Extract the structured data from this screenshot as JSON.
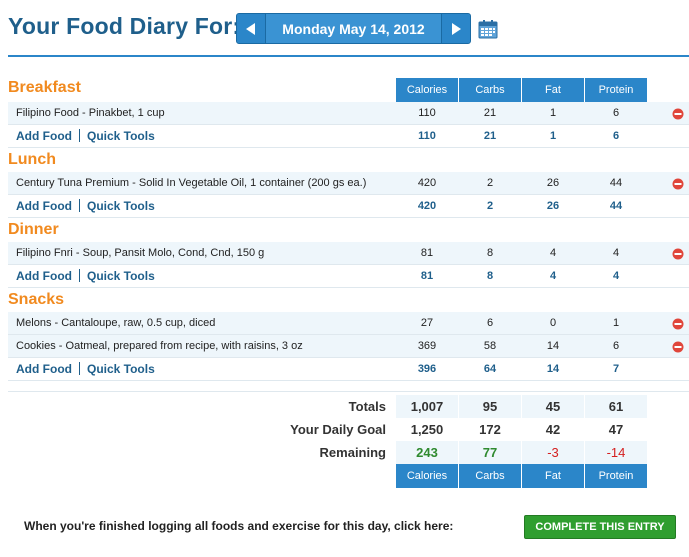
{
  "header": {
    "title": "Your Food Diary For:",
    "date": "Monday May 14, 2012"
  },
  "columns": [
    "Calories",
    "Carbs",
    "Fat",
    "Protein"
  ],
  "links": {
    "add_food": "Add Food",
    "quick_tools": "Quick Tools"
  },
  "meals": [
    {
      "name": "Breakfast",
      "foods": [
        {
          "name": "Filipino Food - Pinakbet, 1 cup",
          "calories": "110",
          "carbs": "21",
          "fat": "1",
          "protein": "6"
        }
      ],
      "totals": {
        "calories": "110",
        "carbs": "21",
        "fat": "1",
        "protein": "6"
      }
    },
    {
      "name": "Lunch",
      "foods": [
        {
          "name": "Century Tuna Premium - Solid In Vegetable Oil, 1 container (200 gs ea.)",
          "calories": "420",
          "carbs": "2",
          "fat": "26",
          "protein": "44"
        }
      ],
      "totals": {
        "calories": "420",
        "carbs": "2",
        "fat": "26",
        "protein": "44"
      }
    },
    {
      "name": "Dinner",
      "foods": [
        {
          "name": "Filipino Fnri - Soup, Pansit Molo, Cond, Cnd, 150 g",
          "calories": "81",
          "carbs": "8",
          "fat": "4",
          "protein": "4"
        }
      ],
      "totals": {
        "calories": "81",
        "carbs": "8",
        "fat": "4",
        "protein": "4"
      }
    },
    {
      "name": "Snacks",
      "foods": [
        {
          "name": "Melons - Cantaloupe, raw, 0.5 cup, diced",
          "calories": "27",
          "carbs": "6",
          "fat": "0",
          "protein": "1"
        },
        {
          "name": "Cookies - Oatmeal, prepared from recipe, with raisins, 3 oz",
          "calories": "369",
          "carbs": "58",
          "fat": "14",
          "protein": "6"
        }
      ],
      "totals": {
        "calories": "396",
        "carbs": "64",
        "fat": "14",
        "protein": "7"
      }
    }
  ],
  "summary": {
    "totals": {
      "label": "Totals",
      "calories": "1,007",
      "carbs": "95",
      "fat": "45",
      "protein": "61"
    },
    "goal": {
      "label": "Your Daily Goal",
      "calories": "1,250",
      "carbs": "172",
      "fat": "42",
      "protein": "47"
    },
    "remaining": {
      "label": "Remaining",
      "calories": "243",
      "carbs": "77",
      "fat": "-3",
      "protein": "-14"
    }
  },
  "footer": {
    "text": "When you're finished logging all foods and exercise for this day, click here:",
    "button": "COMPLETE THIS ENTRY"
  },
  "colors": {
    "accent": "#2b86c9",
    "section": "#f18a1f",
    "link": "#1f5f8b",
    "positive": "#2f8a2f",
    "negative": "#d42020",
    "button": "#2f9e2f"
  },
  "icons": {
    "prev": "chevron-left-icon",
    "next": "chevron-right-icon",
    "calendar": "calendar-icon",
    "delete": "delete-icon"
  }
}
